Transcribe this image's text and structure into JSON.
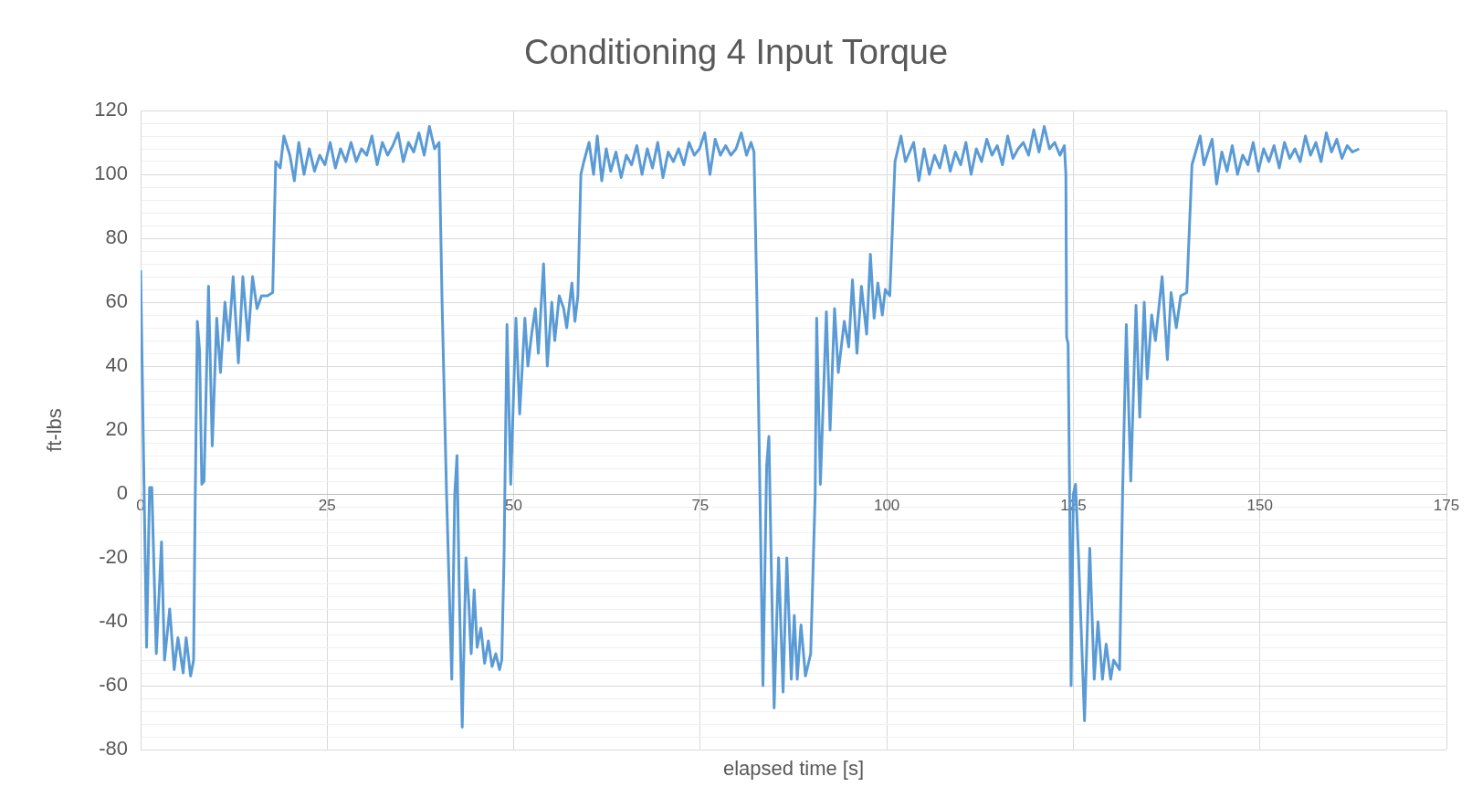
{
  "chart_data": {
    "type": "line",
    "title": "Conditioning 4 Input Torque",
    "xlabel": "elapsed time [s]",
    "ylabel": "ft-lbs",
    "xlim": [
      0,
      175
    ],
    "xticks": [
      0,
      25,
      50,
      75,
      100,
      125,
      150,
      175
    ],
    "ylim": [
      -80,
      120
    ],
    "yticks": [
      -80,
      {
        "value": -76,
        "label": null
      },
      {
        "value": -72,
        "label": null
      },
      {
        "value": -68,
        "label": null
      },
      {
        "value": -64,
        "label": null
      },
      -60,
      {
        "value": -56,
        "label": null
      },
      {
        "value": -52,
        "label": null
      },
      {
        "value": -48,
        "label": null
      },
      {
        "value": -44,
        "label": null
      },
      -40,
      {
        "value": -36,
        "label": null
      },
      {
        "value": -32,
        "label": null
      },
      {
        "value": -28,
        "label": null
      },
      {
        "value": -24,
        "label": null
      },
      -20,
      {
        "value": -16,
        "label": null
      },
      {
        "value": -12,
        "label": null
      },
      {
        "value": -8,
        "label": null
      },
      {
        "value": -4,
        "label": null
      },
      0,
      {
        "value": 4,
        "label": null
      },
      {
        "value": 8,
        "label": null
      },
      {
        "value": 12,
        "label": null
      },
      {
        "value": 16,
        "label": null
      },
      20,
      {
        "value": 24,
        "label": null
      },
      {
        "value": 28,
        "label": null
      },
      {
        "value": 32,
        "label": null
      },
      {
        "value": 36,
        "label": null
      },
      40,
      {
        "value": 44,
        "label": null
      },
      {
        "value": 48,
        "label": null
      },
      {
        "value": 52,
        "label": null
      },
      {
        "value": 56,
        "label": null
      },
      60,
      {
        "value": 64,
        "label": null
      },
      {
        "value": 68,
        "label": null
      },
      {
        "value": 72,
        "label": null
      },
      {
        "value": 76,
        "label": null
      },
      80,
      {
        "value": 84,
        "label": null
      },
      {
        "value": 88,
        "label": null
      },
      {
        "value": 92,
        "label": null
      },
      {
        "value": 96,
        "label": null
      },
      100,
      {
        "value": 104,
        "label": null
      },
      {
        "value": 108,
        "label": null
      },
      {
        "value": 112,
        "label": null
      },
      {
        "value": 116,
        "label": null
      },
      120
    ],
    "grid": true,
    "legend": false,
    "marker": "none",
    "line_style": "solid",
    "series": [
      {
        "color": "#5b9bd5",
        "x": [
          0,
          0.8,
          1.2,
          1.5,
          2.1,
          2.8,
          3.2,
          3.9,
          4.5,
          5,
          5.7,
          6.1,
          6.7,
          7.1,
          7.3,
          7.6,
          7.9,
          8.2,
          8.5,
          9.1,
          9.6,
          10.2,
          10.7,
          11.3,
          11.8,
          12.4,
          13.1,
          13.7,
          14.4,
          15,
          15.6,
          16.2,
          17,
          17.7,
          18.1,
          18.7,
          19.2,
          20,
          20.6,
          21.2,
          21.9,
          22.6,
          23.3,
          24,
          24.7,
          25.4,
          26.1,
          26.8,
          27.5,
          28.2,
          28.9,
          29.6,
          30.3,
          31,
          31.7,
          32.4,
          33.1,
          33.8,
          34.5,
          35.2,
          35.9,
          36.6,
          37.3,
          38,
          38.7,
          39.4,
          40,
          40.4,
          41,
          41.7,
          42.1,
          42.4,
          42.7,
          43.1,
          43.6,
          44,
          44.3,
          44.7,
          45.1,
          45.6,
          46.1,
          46.6,
          47.1,
          47.6,
          48.1,
          48.4,
          48.7,
          49.1,
          49.6,
          50.3,
          50.8,
          51.5,
          51.9,
          52.4,
          52.9,
          53.3,
          54,
          54.5,
          55.1,
          55.5,
          56.1,
          56.7,
          57.1,
          57.8,
          58.2,
          58.6,
          59,
          59.4,
          60.1,
          60.7,
          61.2,
          61.8,
          62.4,
          63,
          63.7,
          64.4,
          65.1,
          65.8,
          66.5,
          67.2,
          67.9,
          68.6,
          69.3,
          70,
          70.7,
          71.4,
          72.1,
          72.8,
          73.5,
          74.2,
          74.9,
          75.6,
          76.3,
          77,
          77.7,
          78.4,
          79.1,
          79.8,
          80.5,
          81.2,
          81.8,
          82.2,
          82.6,
          83,
          83.4,
          83.9,
          84.2,
          84.5,
          84.9,
          85.5,
          86.1,
          86.6,
          87.2,
          87.6,
          88,
          88.5,
          89.1,
          89.8,
          90.4,
          90.6,
          91.1,
          91.9,
          92.4,
          93,
          93.5,
          94.3,
          94.9,
          95.4,
          96,
          96.6,
          97.3,
          97.8,
          98.3,
          98.8,
          99.4,
          99.8,
          100.4,
          101.1,
          101.9,
          102.5,
          103.6,
          104.3,
          105,
          105.7,
          106.4,
          107.1,
          107.8,
          108.5,
          109.2,
          109.9,
          110.6,
          111.3,
          112,
          112.7,
          113.4,
          114.1,
          114.8,
          115.5,
          116.2,
          116.9,
          117.6,
          118.3,
          119,
          119.7,
          120.4,
          121.1,
          121.8,
          122.5,
          123.2,
          123.8,
          124,
          124.1,
          124.3,
          124.5,
          124.7,
          125,
          125.3,
          125.7,
          126.5,
          127.2,
          127.8,
          128.3,
          128.9,
          129.4,
          130,
          130.4,
          131.2,
          131.6,
          132.1,
          132.7,
          133.4,
          133.9,
          134.5,
          134.9,
          135.5,
          136,
          136.9,
          137.6,
          138.1,
          138.8,
          139.4,
          140.2,
          140.9,
          142,
          142.5,
          143.6,
          144.2,
          144.9,
          145.6,
          146.3,
          147,
          147.7,
          148.4,
          149.1,
          149.8,
          150.5,
          151.2,
          151.9,
          152.6,
          153.3,
          154,
          154.7,
          155.4,
          156.1,
          156.8,
          157.5,
          158.2,
          158.9,
          159.6,
          160.3,
          161,
          161.7,
          162.4,
          163.3
        ],
        "values": [
          70,
          -48,
          2,
          2,
          -50,
          -15,
          -52,
          -36,
          -55,
          -45,
          -56,
          -45,
          -57,
          -52,
          -5,
          54,
          45,
          3,
          4,
          65,
          15,
          55,
          38,
          60,
          48,
          68,
          41,
          68,
          48,
          68,
          58,
          62,
          62,
          63,
          104,
          102,
          112,
          106,
          98,
          110,
          100,
          108,
          101,
          106,
          103,
          110,
          102,
          108,
          104,
          110,
          104,
          108,
          106,
          112,
          103,
          110,
          106,
          109,
          113,
          104,
          110,
          107,
          113,
          106,
          115,
          108,
          110,
          60,
          0,
          -58,
          0,
          12,
          -30,
          -73,
          -20,
          -35,
          -50,
          -30,
          -48,
          -42,
          -53,
          -46,
          -54,
          -50,
          -55,
          -52,
          -20,
          53,
          3,
          55,
          25,
          55,
          40,
          50,
          58,
          44,
          72,
          40,
          60,
          48,
          62,
          58,
          52,
          66,
          54,
          62,
          100,
          104,
          110,
          100,
          112,
          98,
          108,
          101,
          107,
          99,
          106,
          103,
          109,
          100,
          108,
          102,
          110,
          99,
          107,
          104,
          108,
          103,
          110,
          106,
          108,
          113,
          100,
          111,
          106,
          109,
          106,
          108,
          113,
          106,
          110,
          107,
          60,
          0,
          -60,
          9,
          18,
          -20,
          -67,
          -20,
          -62,
          -20,
          -58,
          -38,
          -58,
          -41,
          -57,
          -50,
          0,
          55,
          3,
          57,
          20,
          58,
          38,
          54,
          46,
          67,
          44,
          65,
          50,
          75,
          55,
          66,
          56,
          64,
          62,
          104,
          112,
          104,
          110,
          98,
          108,
          100,
          106,
          102,
          109,
          101,
          107,
          103,
          110,
          100,
          108,
          104,
          111,
          106,
          109,
          103,
          112,
          105,
          108,
          110,
          106,
          114,
          107,
          115,
          108,
          110,
          106,
          109,
          100,
          49,
          47,
          0,
          -60,
          0,
          3,
          -20,
          -71,
          -17,
          -58,
          -40,
          -58,
          -47,
          -58,
          -52,
          -55,
          0,
          53,
          4,
          59,
          24,
          60,
          36,
          56,
          48,
          68,
          42,
          63,
          52,
          62,
          63,
          103,
          112,
          103,
          111,
          97,
          107,
          101,
          109,
          100,
          106,
          103,
          110,
          101,
          108,
          104,
          109,
          102,
          110,
          105,
          108,
          104,
          112,
          106,
          110,
          104,
          113,
          107,
          111,
          105,
          109,
          107,
          108
        ]
      }
    ]
  }
}
